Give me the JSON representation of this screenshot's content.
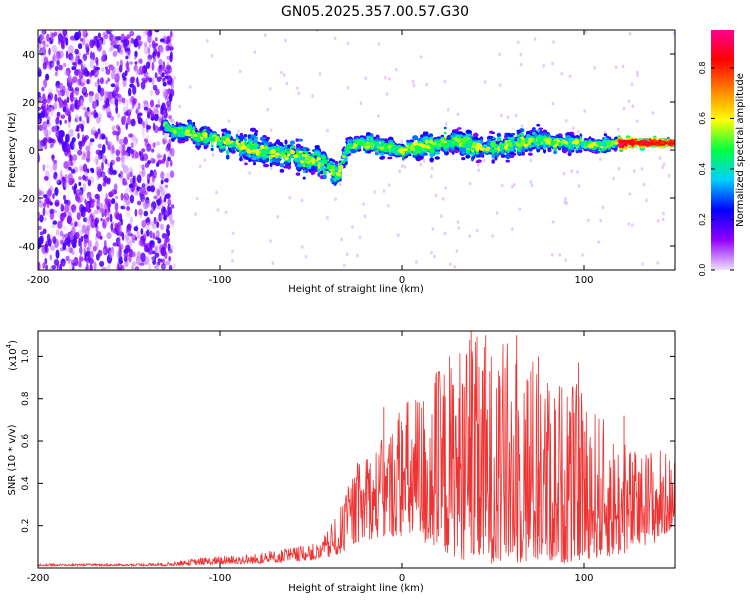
{
  "title": "GN05.2025.357.00.57.G30",
  "chart_data": [
    {
      "type": "heatmap",
      "xlabel": "Height of straight line (km)",
      "ylabel": "Frequency (Hz)",
      "xlim": [
        -200,
        150
      ],
      "ylim": [
        -50,
        50
      ],
      "xticks": [
        -200,
        -100,
        0,
        100
      ],
      "xticklabels": [
        "-200",
        "-100",
        "0",
        "100"
      ],
      "yticks": [
        -40,
        -20,
        0,
        20,
        40
      ],
      "yticklabels": [
        "-40",
        "-20",
        "0",
        "20",
        "40"
      ],
      "colorbar": {
        "label": "Normalized spectral amplitude",
        "range": [
          0,
          0.95
        ],
        "ticks": [
          0,
          0.2,
          0.4,
          0.6,
          0.8
        ],
        "ticklabels": [
          "0.0",
          "0.2",
          "0.4",
          "0.6",
          "0.8"
        ],
        "colormap": [
          "#f0e0ff",
          "#9000ff",
          "#0000ff",
          "#00d0ff",
          "#00ff40",
          "#ffff00",
          "#ff8000",
          "#ff0000",
          "#ff0090"
        ]
      },
      "noise_region_x": [
        -200,
        -130
      ],
      "ridge": {
        "x": [
          -130,
          -115,
          -100,
          -80,
          -60,
          -45,
          -40,
          -35,
          -30,
          -25,
          -15,
          0,
          15,
          30,
          45,
          60,
          75,
          90,
          105,
          120,
          135,
          150
        ],
        "center_freq": [
          10,
          6,
          4,
          0,
          -3,
          -5,
          -7,
          -10,
          1,
          3,
          2,
          0,
          2,
          4,
          1,
          2,
          4,
          3,
          2,
          3,
          3,
          3
        ],
        "half_width": [
          6,
          6,
          6,
          8,
          8,
          8,
          7,
          6,
          4,
          5,
          5,
          5,
          6,
          7,
          6,
          7,
          6,
          5,
          4,
          3,
          2,
          2
        ]
      }
    },
    {
      "type": "line",
      "xlabel": "Height of straight line (km)",
      "ylabel": "SNR (10 * v/v)",
      "y_multiplier": "(x10",
      "y_multiplier_exp": "4",
      "xlim": [
        -200,
        150
      ],
      "ylim": [
        0,
        1.12
      ],
      "xticks": [
        -200,
        -100,
        0,
        100
      ],
      "xticklabels": [
        "-200",
        "-100",
        "0",
        "100"
      ],
      "yticks": [
        0.2,
        0.4,
        0.6,
        0.8,
        1.0
      ],
      "yticklabels": [
        "0.2",
        "0.4",
        "0.6",
        "0.8",
        "1.0"
      ],
      "series": [
        {
          "name": "SNR",
          "color": "#ee3333",
          "envelope_x": [
            -200,
            -150,
            -130,
            -110,
            -80,
            -60,
            -45,
            -35,
            -25,
            -10,
            0,
            10,
            20,
            30,
            40,
            50,
            60,
            70,
            80,
            90,
            100,
            110,
            120,
            130,
            140,
            150
          ],
          "envelope_low": [
            0.01,
            0.01,
            0.01,
            0.015,
            0.02,
            0.03,
            0.04,
            0.06,
            0.12,
            0.15,
            0.15,
            0.12,
            0.08,
            0.05,
            0.02,
            0.02,
            0.02,
            0.02,
            0.03,
            0.02,
            0.04,
            0.05,
            0.06,
            0.1,
            0.12,
            0.2
          ],
          "envelope_high": [
            0.02,
            0.02,
            0.025,
            0.05,
            0.07,
            0.1,
            0.12,
            0.26,
            0.5,
            0.62,
            0.8,
            0.85,
            0.96,
            1.08,
            1.1,
            1.05,
            1.1,
            1.05,
            0.92,
            0.9,
            0.85,
            0.72,
            0.62,
            0.55,
            0.6,
            0.5
          ]
        }
      ],
      "peaks": [
        {
          "x": -10,
          "y": 0.76
        },
        {
          "x": 20,
          "y": 0.9
        },
        {
          "x": 38,
          "y": 1.12
        },
        {
          "x": 46,
          "y": 1.1
        },
        {
          "x": 63,
          "y": 1.1
        },
        {
          "x": 75,
          "y": 1.0
        },
        {
          "x": 97,
          "y": 0.97
        },
        {
          "x": 122,
          "y": 0.72
        }
      ]
    }
  ]
}
